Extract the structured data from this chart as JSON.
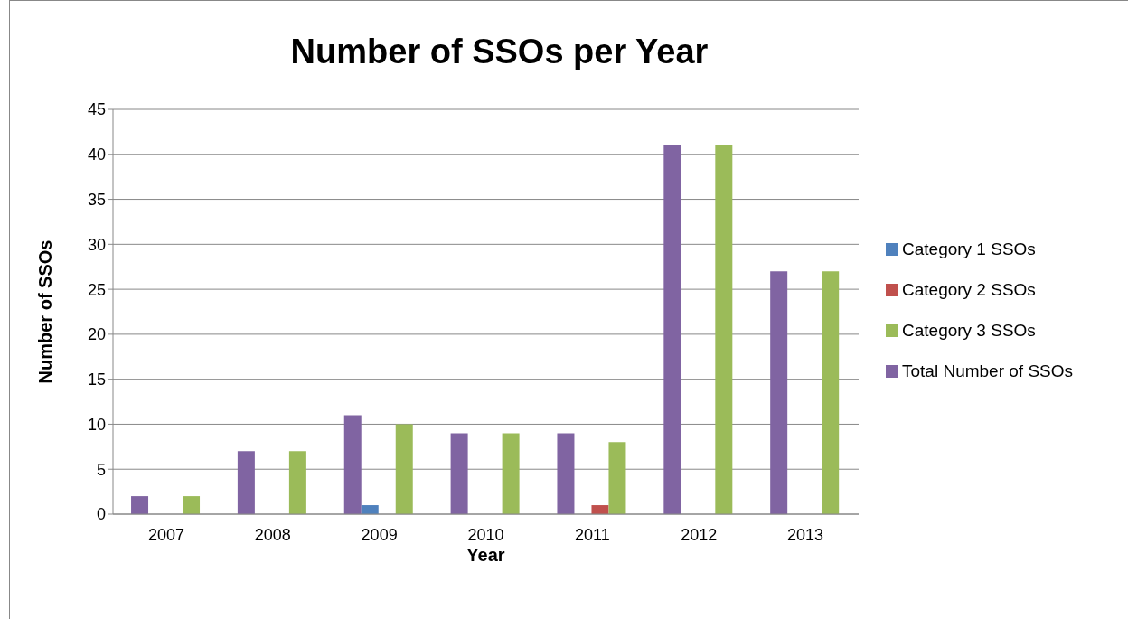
{
  "chart_data": {
    "type": "bar",
    "title": "Number of SSOs per Year",
    "xlabel": "Year",
    "ylabel": "Number of SSOs",
    "categories": [
      "2007",
      "2008",
      "2009",
      "2010",
      "2011",
      "2012",
      "2013"
    ],
    "series": [
      {
        "name": "Total Number of SSOs",
        "color": "#8064a2",
        "values": [
          2,
          7,
          11,
          9,
          9,
          41,
          27
        ]
      },
      {
        "name": "Category 1 SSOs",
        "color": "#4f81bd",
        "values": [
          0,
          0,
          1,
          0,
          0,
          0,
          0
        ]
      },
      {
        "name": "Category 2 SSOs",
        "color": "#c0504d",
        "values": [
          0,
          0,
          0,
          0,
          1,
          0,
          0
        ]
      },
      {
        "name": "Category 3 SSOs",
        "color": "#9bbb59",
        "values": [
          2,
          7,
          10,
          9,
          8,
          41,
          27
        ]
      }
    ],
    "ylim": [
      0,
      45
    ],
    "yticks": [
      0,
      5,
      10,
      15,
      20,
      25,
      30,
      35,
      40,
      45
    ],
    "grid": "y",
    "legend": "right"
  }
}
